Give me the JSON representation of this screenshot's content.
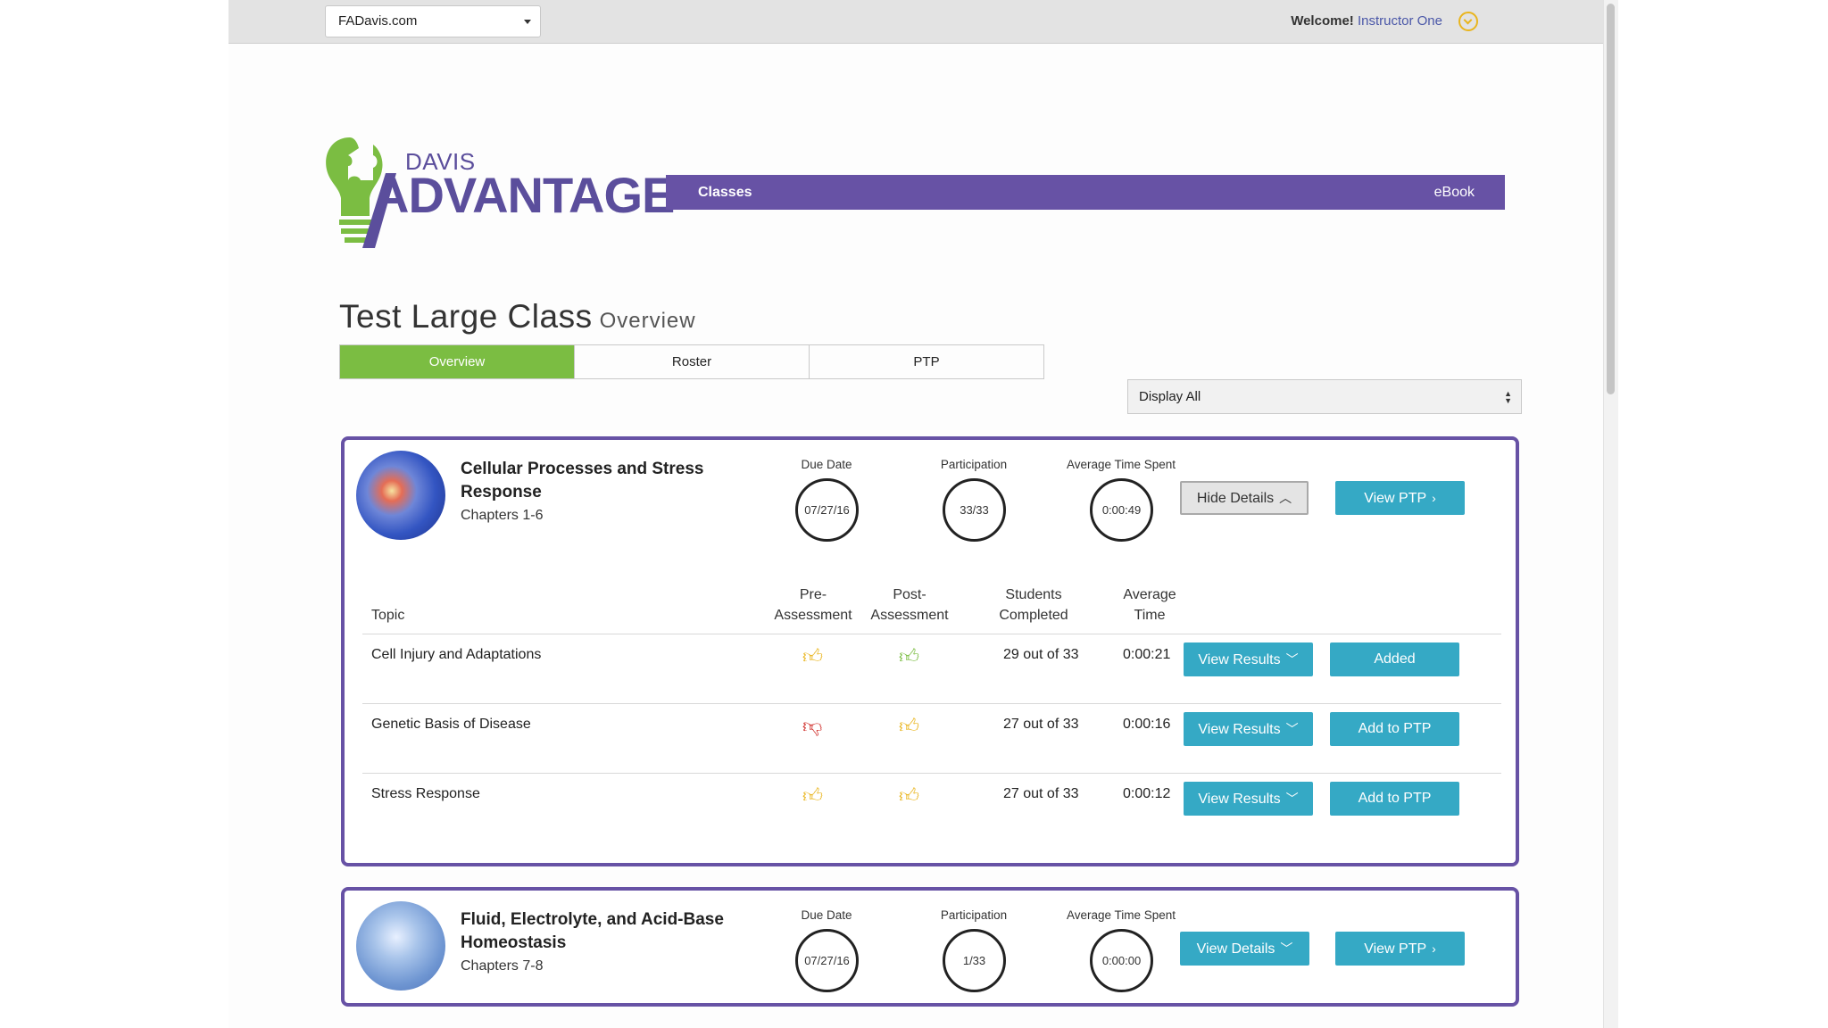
{
  "topbar": {
    "site_select": "FADavis.com",
    "welcome_label": "Welcome!",
    "user_name": "Instructor One"
  },
  "logo": {
    "line1": "DAVIS",
    "line2": "ADVANTAGE"
  },
  "nav": {
    "classes": "Classes",
    "ebook": "eBook"
  },
  "page": {
    "title": "Test Large Class",
    "subtitle": "Overview"
  },
  "tabs": [
    {
      "label": "Overview",
      "active": true
    },
    {
      "label": "Roster",
      "active": false
    },
    {
      "label": "PTP",
      "active": false
    }
  ],
  "filter": {
    "selected": "Display All"
  },
  "units": [
    {
      "title": "Cellular Processes and Stress Response",
      "chapters": "Chapters 1-6",
      "due_label": "Due Date",
      "due_date": "07/27/16",
      "participation_label": "Participation",
      "participation": "33/33",
      "time_label": "Average Time Spent",
      "avg_time": "0:00:49",
      "details_button": "Hide Details",
      "ptp_button": "View PTP",
      "table": {
        "headers": {
          "topic": "Topic",
          "pre": "Pre-\nAssessment",
          "post": "Post-\nAssessment",
          "students": "Students\nCompleted",
          "avg": "Average\nTime"
        },
        "rows": [
          {
            "topic": "Cell Injury and Adaptations",
            "pre": "thumbs-up-yellow",
            "post": "thumbs-up-green",
            "students": "29 out of 33",
            "avg": "0:00:21",
            "results_button": "View Results",
            "ptp_button": "Added"
          },
          {
            "topic": "Genetic Basis of Disease",
            "pre": "thumbs-down-red",
            "post": "thumbs-up-yellow",
            "students": "27 out of 33",
            "avg": "0:00:16",
            "results_button": "View Results",
            "ptp_button": "Add to PTP"
          },
          {
            "topic": "Stress Response",
            "pre": "thumbs-up-yellow",
            "post": "thumbs-up-yellow",
            "students": "27 out of 33",
            "avg": "0:00:12",
            "results_button": "View Results",
            "ptp_button": "Add to PTP"
          }
        ]
      }
    },
    {
      "title": "Fluid, Electrolyte, and Acid-Base Homeostasis",
      "chapters": "Chapters 7-8",
      "due_label": "Due Date",
      "due_date": "07/27/16",
      "participation_label": "Participation",
      "participation": "1/33",
      "time_label": "Average Time Spent",
      "avg_time": "0:00:00",
      "details_button": "View Details",
      "ptp_button": "View PTP"
    }
  ],
  "colors": {
    "brand_purple": "#6752a5",
    "active_green": "#7bbd42",
    "button_teal": "#35a9c5",
    "thumb_yellow": "#e9b51e",
    "thumb_red": "#d0312d"
  }
}
